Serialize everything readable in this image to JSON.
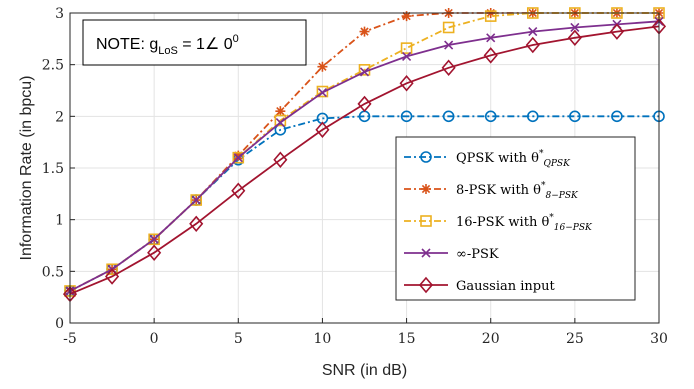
{
  "chart_data": {
    "type": "line",
    "xlabel": "SNR (in dB)",
    "ylabel": "Information Rate (in bpcu)",
    "xlim": [
      -5,
      30
    ],
    "ylim": [
      0,
      3
    ],
    "xticks": [
      "-5",
      "0",
      "5",
      "10",
      "15",
      "20",
      "25",
      "30"
    ],
    "yticks": [
      "0",
      "0.5",
      "1",
      "1.5",
      "2",
      "2.5",
      "3"
    ],
    "grid": true,
    "legend_position": "bottom-right",
    "annotation": {
      "prefix": "NOTE: g",
      "subscript": "LoS",
      "middle": " = 1",
      "angle": "∠",
      "value": " 0",
      "superscript": "0"
    },
    "series": [
      {
        "name": "QPSK with θ*QPSK",
        "legend_text": "QPSK with θ",
        "legend_star": "*",
        "legend_subscript": "QPSK",
        "color": "#0072BD",
        "linestyle": "dashdot",
        "marker": "circle",
        "x": [
          -5,
          -2.5,
          0,
          2.5,
          5,
          7.5,
          10,
          12.5,
          15,
          17.5,
          20,
          22.5,
          25,
          27.5,
          30
        ],
        "values": [
          0.31,
          0.52,
          0.81,
          1.19,
          1.58,
          1.87,
          1.98,
          2.0,
          2.0,
          2.0,
          2.0,
          2.0,
          2.0,
          2.0,
          2.0
        ]
      },
      {
        "name": "8-PSK with θ*8−PSK",
        "legend_text": "8-PSK with θ",
        "legend_star": "*",
        "legend_subscript": "8−PSK",
        "color": "#D95319",
        "linestyle": "dashdot",
        "marker": "asterisk",
        "x": [
          -5,
          -2.5,
          0,
          2.5,
          5,
          7.5,
          10,
          12.5,
          15,
          17.5,
          20,
          22.5,
          25,
          27.5,
          30
        ],
        "values": [
          0.31,
          0.52,
          0.81,
          1.19,
          1.62,
          2.05,
          2.48,
          2.82,
          2.97,
          3.0,
          3.0,
          3.0,
          3.0,
          3.0,
          3.0
        ]
      },
      {
        "name": "16-PSK with θ*16−PSK",
        "legend_text": "16-PSK with θ",
        "legend_star": "*",
        "legend_subscript": "16−PSK",
        "color": "#EDB120",
        "linestyle": "dashdot",
        "marker": "square",
        "x": [
          -5,
          -2.5,
          0,
          2.5,
          5,
          7.5,
          10,
          12.5,
          15,
          17.5,
          20,
          22.5,
          25,
          27.5,
          30
        ],
        "values": [
          0.31,
          0.52,
          0.81,
          1.19,
          1.6,
          1.96,
          2.24,
          2.45,
          2.66,
          2.86,
          2.97,
          3.0,
          3.0,
          3.0,
          3.0
        ]
      },
      {
        "name": "∞-PSK",
        "legend_text": "∞-PSK",
        "legend_star": "",
        "legend_subscript": "",
        "color": "#7E2F8E",
        "linestyle": "solid",
        "marker": "x",
        "x": [
          -5,
          -2.5,
          0,
          2.5,
          5,
          7.5,
          10,
          12.5,
          15,
          17.5,
          20,
          22.5,
          25,
          27.5,
          30
        ],
        "values": [
          0.31,
          0.52,
          0.81,
          1.19,
          1.6,
          1.94,
          2.23,
          2.43,
          2.58,
          2.69,
          2.76,
          2.82,
          2.86,
          2.89,
          2.92
        ]
      },
      {
        "name": "Gaussian input",
        "legend_text": "Gaussian input",
        "legend_star": "",
        "legend_subscript": "",
        "color": "#A2142F",
        "linestyle": "solid",
        "marker": "diamond",
        "x": [
          -5,
          -2.5,
          0,
          2.5,
          5,
          7.5,
          10,
          12.5,
          15,
          17.5,
          20,
          22.5,
          25,
          27.5,
          30
        ],
        "values": [
          0.28,
          0.45,
          0.68,
          0.96,
          1.28,
          1.58,
          1.87,
          2.12,
          2.32,
          2.47,
          2.59,
          2.69,
          2.76,
          2.82,
          2.87
        ]
      }
    ]
  }
}
